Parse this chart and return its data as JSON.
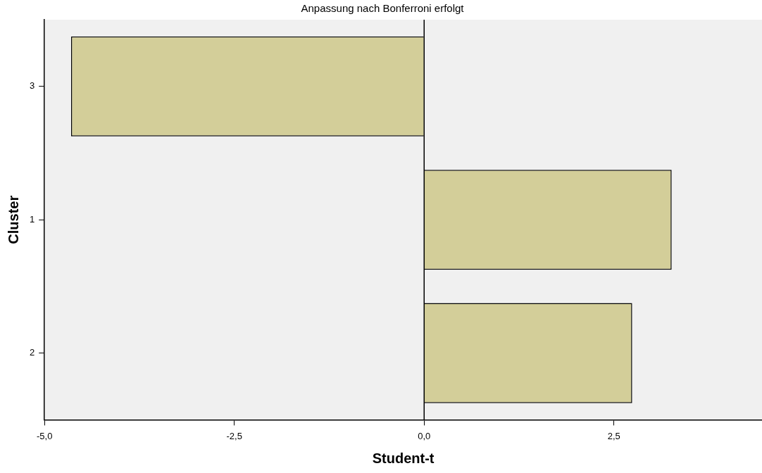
{
  "chart_data": {
    "type": "bar",
    "orientation": "horizontal",
    "title": "Anpassung nach Bonferroni erfolgt",
    "xlabel": "Student-t",
    "ylabel": "Cluster",
    "categories": [
      "3",
      "1",
      "2"
    ],
    "values": [
      -4.65,
      3.26,
      2.74
    ],
    "color": "#d3ce99",
    "xlim": [
      -5,
      4.45
    ],
    "xticks": [
      {
        "value": -5,
        "label": "-5,0"
      },
      {
        "value": -2.5,
        "label": "-2,5"
      },
      {
        "value": 0,
        "label": "0,0"
      },
      {
        "value": 2.5,
        "label": "2,5"
      }
    ],
    "ref_lines": [
      {
        "axis": "x",
        "value": 0,
        "color": "#000000"
      }
    ],
    "grid": false,
    "legend": false
  }
}
